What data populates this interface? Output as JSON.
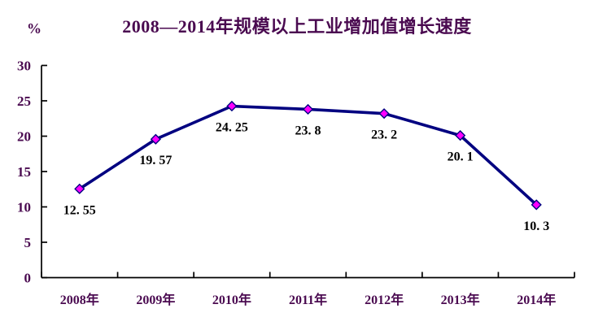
{
  "chart": {
    "title": "2008—2014年规模以上工业增加值增长速度",
    "y_unit": "%"
  },
  "chart_data": {
    "type": "line",
    "title": "2008—2014年规模以上工业增加值增长速度",
    "categories": [
      "2008年",
      "2009年",
      "2010年",
      "2011年",
      "2012年",
      "2013年",
      "2014年"
    ],
    "values": [
      12.55,
      19.57,
      24.25,
      23.8,
      23.2,
      20.1,
      10.3
    ],
    "point_labels": [
      "12. 55",
      "19. 57",
      "24. 25",
      "23. 8",
      "23. 2",
      "20. 1",
      "10. 3"
    ],
    "xlabel": "",
    "ylabel": "%",
    "ylim": [
      0,
      30
    ],
    "y_ticks": [
      0,
      5,
      10,
      15,
      20,
      25,
      30
    ],
    "grid": false,
    "legend": "none",
    "colors": {
      "line": "#000080",
      "marker_fill": "#FF00FF",
      "marker_stroke": "#000080",
      "axis": "#000000",
      "axis_text": "#4A0A50",
      "title_text": "#4A0A50",
      "point_label_text": "#000000",
      "background": "#FFFFFF"
    }
  }
}
